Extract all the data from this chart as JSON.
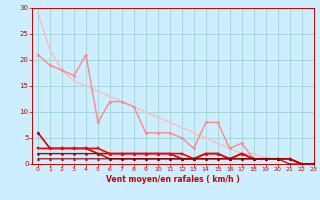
{
  "background_color": "#cceeff",
  "grid_color": "#99cccc",
  "xlim": [
    -0.5,
    23
  ],
  "ylim": [
    0,
    30
  ],
  "yticks": [
    0,
    5,
    10,
    15,
    20,
    25,
    30
  ],
  "xticks": [
    0,
    1,
    2,
    3,
    4,
    5,
    6,
    7,
    8,
    9,
    10,
    11,
    12,
    13,
    14,
    15,
    16,
    17,
    18,
    19,
    20,
    21,
    22,
    23
  ],
  "xlabel": "Vent moyen/en rafales ( km/h )",
  "lines": [
    {
      "x": [
        0,
        1,
        2,
        3,
        4,
        5,
        6,
        7,
        8,
        9,
        10,
        11,
        12,
        13,
        14,
        15,
        16,
        17,
        18,
        19,
        20,
        21,
        22,
        23
      ],
      "y": [
        29,
        22,
        18,
        16,
        15,
        14,
        13,
        12,
        11,
        10,
        9,
        8,
        7,
        6,
        5,
        4,
        3,
        2,
        2,
        1,
        1,
        1,
        0,
        0
      ],
      "color": "#ffbbbb",
      "lw": 1.0,
      "marker": null
    },
    {
      "x": [
        0,
        1,
        2,
        3,
        4,
        5,
        6,
        7,
        8,
        9,
        10,
        11,
        12,
        13,
        14,
        15,
        16,
        17,
        18,
        19,
        20,
        21,
        22,
        23
      ],
      "y": [
        21,
        19,
        18,
        17,
        21,
        8,
        12,
        12,
        11,
        6,
        6,
        6,
        5,
        3,
        8,
        8,
        3,
        4,
        1,
        1,
        1,
        1,
        0,
        0
      ],
      "color": "#ff8888",
      "lw": 1.0,
      "marker": "o",
      "markersize": 1.8
    },
    {
      "x": [
        0,
        1,
        2,
        3,
        4,
        5,
        6,
        7,
        8,
        9,
        10,
        11,
        12,
        13,
        14,
        15,
        16,
        17,
        18,
        19,
        20,
        21,
        22,
        23
      ],
      "y": [
        6,
        3,
        3,
        3,
        3,
        2,
        2,
        2,
        2,
        2,
        2,
        2,
        1,
        1,
        2,
        2,
        1,
        2,
        1,
        1,
        1,
        1,
        0,
        0
      ],
      "color": "#cc0000",
      "lw": 1.2,
      "marker": "o",
      "markersize": 2.0
    },
    {
      "x": [
        0,
        1,
        2,
        3,
        4,
        5,
        6,
        7,
        8,
        9,
        10,
        11,
        12,
        13,
        14,
        15,
        16,
        17,
        18,
        19,
        20,
        21,
        22,
        23
      ],
      "y": [
        3,
        3,
        3,
        3,
        3,
        3,
        2,
        2,
        2,
        2,
        2,
        2,
        2,
        1,
        2,
        2,
        1,
        2,
        1,
        1,
        1,
        1,
        0,
        0
      ],
      "color": "#ff0000",
      "lw": 1.2,
      "marker": "s",
      "markersize": 2.0
    },
    {
      "x": [
        0,
        1,
        2,
        3,
        4,
        5,
        6,
        7,
        8,
        9,
        10,
        11,
        12,
        13,
        14,
        15,
        16,
        17,
        18,
        19,
        20,
        21,
        22,
        23
      ],
      "y": [
        2,
        2,
        2,
        2,
        2,
        2,
        1,
        1,
        1,
        1,
        1,
        1,
        1,
        1,
        1,
        1,
        1,
        1,
        1,
        1,
        1,
        1,
        0,
        0
      ],
      "color": "#bb0000",
      "lw": 1.0,
      "marker": "D",
      "markersize": 1.5
    },
    {
      "x": [
        0,
        1,
        2,
        3,
        4,
        5,
        6,
        7,
        8,
        9,
        10,
        11,
        12,
        13,
        14,
        15,
        16,
        17,
        18,
        19,
        20,
        21,
        22,
        23
      ],
      "y": [
        1,
        1,
        1,
        1,
        1,
        1,
        1,
        1,
        1,
        1,
        1,
        1,
        1,
        1,
        1,
        1,
        1,
        1,
        1,
        1,
        1,
        0,
        0,
        0
      ],
      "color": "#880000",
      "lw": 0.8,
      "marker": "^",
      "markersize": 1.5
    }
  ]
}
